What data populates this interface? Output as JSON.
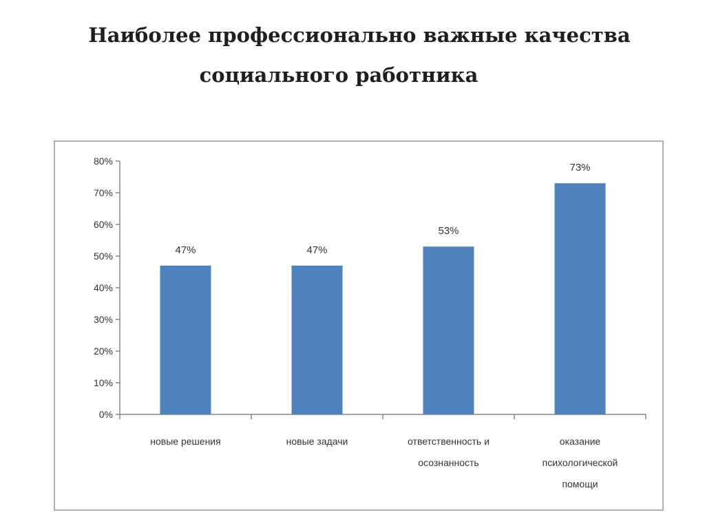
{
  "title": {
    "line1": "Наиболее профессионально важные качества",
    "line2": "социального работника"
  },
  "chart_data": {
    "type": "bar",
    "categories": [
      [
        "новые  решения"
      ],
      [
        "новые  задачи"
      ],
      [
        "ответственность   и",
        "осознанность"
      ],
      [
        "оказание",
        "психологической",
        "помощи"
      ]
    ],
    "values": [
      47,
      47,
      53,
      73
    ],
    "data_labels": [
      "47%",
      "47%",
      "53%",
      "73%"
    ],
    "ylim": [
      0,
      80
    ],
    "yticks": [
      0,
      10,
      20,
      30,
      40,
      50,
      60,
      70,
      80
    ],
    "ytick_labels": [
      "0%",
      "10%",
      "20%",
      "30%",
      "40%",
      "50%",
      "60%",
      "70%",
      "80%"
    ],
    "bar_color": "#4f81bd",
    "axis_color": "#868686",
    "grid": false,
    "legend": "none"
  }
}
